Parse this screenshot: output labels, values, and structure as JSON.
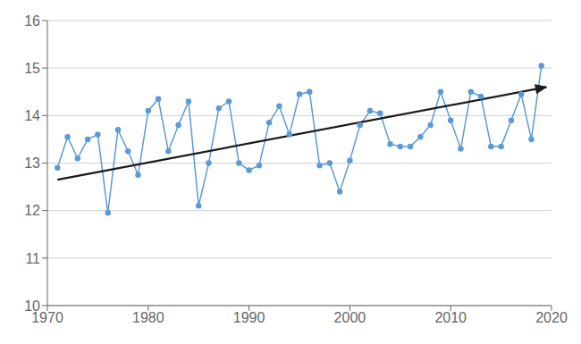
{
  "chart_data": {
    "type": "line",
    "x": [
      1971,
      1972,
      1973,
      1974,
      1975,
      1976,
      1977,
      1978,
      1979,
      1980,
      1981,
      1982,
      1983,
      1984,
      1985,
      1986,
      1987,
      1988,
      1989,
      1990,
      1991,
      1992,
      1993,
      1994,
      1995,
      1996,
      1997,
      1998,
      1999,
      2000,
      2001,
      2002,
      2003,
      2004,
      2005,
      2006,
      2007,
      2008,
      2009,
      2010,
      2011,
      2012,
      2013,
      2014,
      2015,
      2016,
      2017,
      2018,
      2019
    ],
    "values": [
      12.9,
      13.55,
      13.1,
      13.5,
      13.6,
      11.95,
      13.7,
      13.25,
      12.75,
      14.1,
      14.35,
      13.25,
      13.8,
      14.3,
      12.1,
      13.0,
      14.15,
      14.3,
      13.0,
      12.85,
      12.95,
      13.85,
      14.2,
      13.6,
      14.45,
      14.5,
      12.95,
      13.0,
      12.4,
      13.05,
      13.8,
      14.1,
      14.05,
      13.4,
      13.35,
      13.35,
      13.55,
      13.8,
      14.5,
      13.9,
      13.3,
      14.5,
      14.4,
      13.35,
      13.35,
      13.9,
      14.45,
      13.5,
      15.05
    ],
    "color": "#5B9BD5",
    "marker": "circle",
    "trend": {
      "x": [
        1971,
        2019.5
      ],
      "values": [
        12.65,
        14.6
      ],
      "color": "#1a1a1a"
    },
    "xlim": [
      1970,
      2020
    ],
    "ylim": [
      10,
      16
    ],
    "xticks": [
      1970,
      1980,
      1990,
      2000,
      2010,
      2020
    ],
    "yticks": [
      10,
      11,
      12,
      13,
      14,
      15,
      16
    ],
    "grid": true
  }
}
